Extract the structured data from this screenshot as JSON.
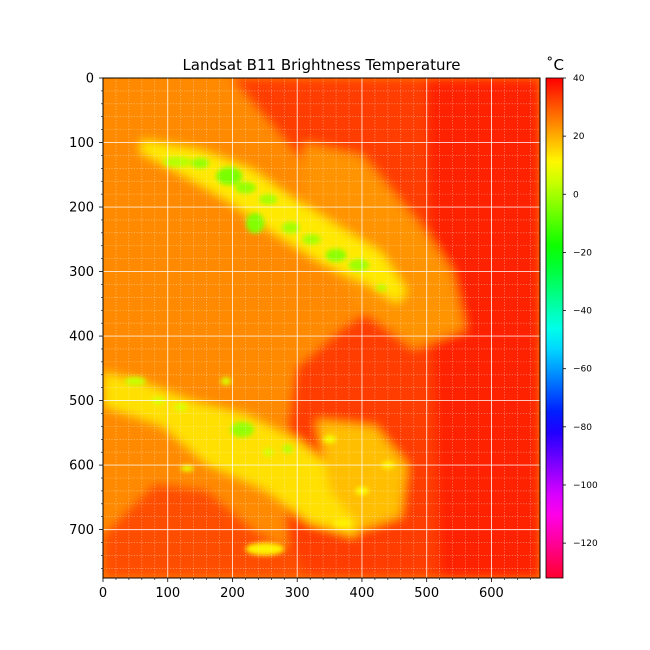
{
  "chart_data": {
    "type": "heatmap",
    "title": "Landsat B11 Brightness Temperature",
    "xlabel": "",
    "ylabel": "",
    "xlim": [
      0,
      675
    ],
    "ylim": [
      775,
      0
    ],
    "x_ticks": [
      0,
      100,
      200,
      300,
      400,
      500,
      600
    ],
    "y_ticks": [
      0,
      100,
      200,
      300,
      400,
      500,
      600,
      700
    ],
    "x_tick_labels": [
      "0",
      "100",
      "200",
      "300",
      "400",
      "500",
      "600"
    ],
    "y_tick_labels": [
      "0",
      "100",
      "200",
      "300",
      "400",
      "500",
      "600",
      "700"
    ],
    "grid": true,
    "colormap": "hsv",
    "colorbar": {
      "unit_label": "˚C",
      "vmin": -132,
      "vmax": 40,
      "ticks": [
        40,
        20,
        0,
        -20,
        -40,
        -60,
        -80,
        -100,
        -120
      ],
      "tick_labels": [
        "40",
        "20",
        "0",
        "−20",
        "−40",
        "−60",
        "−80",
        "−100",
        "−120"
      ]
    },
    "background_value": 24,
    "regions": [
      {
        "name": "upper-right-warm",
        "value": 33,
        "points": [
          [
            200,
            0
          ],
          [
            675,
            0
          ],
          [
            675,
            775
          ],
          [
            290,
            775
          ],
          [
            280,
            590
          ],
          [
            300,
            450
          ],
          [
            370,
            390
          ],
          [
            460,
            330
          ],
          [
            430,
            250
          ],
          [
            320,
            140
          ]
        ]
      },
      {
        "name": "east-strip",
        "value": 36,
        "points": [
          [
            500,
            0
          ],
          [
            675,
            0
          ],
          [
            675,
            775
          ],
          [
            520,
            775
          ],
          [
            510,
            420
          ]
        ]
      },
      {
        "name": "lower-left-warm",
        "value": 31,
        "points": [
          [
            0,
            710
          ],
          [
            80,
            630
          ],
          [
            160,
            640
          ],
          [
            230,
            700
          ],
          [
            300,
            740
          ],
          [
            320,
            775
          ],
          [
            0,
            775
          ]
        ]
      },
      {
        "name": "right-pink-lobe",
        "value": 23,
        "points": [
          [
            310,
            100
          ],
          [
            400,
            120
          ],
          [
            500,
            240
          ],
          [
            540,
            300
          ],
          [
            560,
            390
          ],
          [
            480,
            420
          ],
          [
            400,
            360
          ],
          [
            350,
            290
          ],
          [
            310,
            200
          ]
        ]
      },
      {
        "name": "upper-band",
        "value": 13,
        "points": [
          [
            60,
            95
          ],
          [
            150,
            110
          ],
          [
            230,
            140
          ],
          [
            300,
            190
          ],
          [
            380,
            240
          ],
          [
            430,
            270
          ],
          [
            470,
            330
          ],
          [
            455,
            350
          ],
          [
            410,
            320
          ],
          [
            340,
            290
          ],
          [
            260,
            240
          ],
          [
            190,
            190
          ],
          [
            120,
            150
          ],
          [
            55,
            115
          ]
        ]
      },
      {
        "name": "lower-band",
        "value": 14,
        "points": [
          [
            0,
            455
          ],
          [
            60,
            470
          ],
          [
            140,
            500
          ],
          [
            220,
            520
          ],
          [
            300,
            560
          ],
          [
            360,
            610
          ],
          [
            400,
            680
          ],
          [
            390,
            710
          ],
          [
            320,
            690
          ],
          [
            250,
            640
          ],
          [
            160,
            600
          ],
          [
            90,
            540
          ],
          [
            0,
            510
          ]
        ]
      },
      {
        "name": "lower-right-specks",
        "value": 18,
        "points": [
          [
            330,
            530
          ],
          [
            420,
            540
          ],
          [
            470,
            600
          ],
          [
            460,
            680
          ],
          [
            400,
            700
          ],
          [
            350,
            640
          ]
        ]
      }
    ],
    "blobs": [
      {
        "cx": 115,
        "cy": 130,
        "rx": 22,
        "ry": 8,
        "value": 2
      },
      {
        "cx": 150,
        "cy": 132,
        "rx": 14,
        "ry": 8,
        "value": -2
      },
      {
        "cx": 195,
        "cy": 152,
        "rx": 20,
        "ry": 14,
        "value": -5
      },
      {
        "cx": 220,
        "cy": 170,
        "rx": 16,
        "ry": 9,
        "value": -2
      },
      {
        "cx": 255,
        "cy": 188,
        "rx": 14,
        "ry": 8,
        "value": 0
      },
      {
        "cx": 235,
        "cy": 225,
        "rx": 14,
        "ry": 16,
        "value": -4
      },
      {
        "cx": 290,
        "cy": 232,
        "rx": 14,
        "ry": 9,
        "value": 0
      },
      {
        "cx": 322,
        "cy": 250,
        "rx": 14,
        "ry": 8,
        "value": 0
      },
      {
        "cx": 360,
        "cy": 275,
        "rx": 16,
        "ry": 10,
        "value": -3
      },
      {
        "cx": 395,
        "cy": 290,
        "rx": 16,
        "ry": 9,
        "value": -1
      },
      {
        "cx": 430,
        "cy": 325,
        "rx": 8,
        "ry": 5,
        "value": 2
      },
      {
        "cx": 50,
        "cy": 470,
        "rx": 16,
        "ry": 7,
        "value": 4
      },
      {
        "cx": 85,
        "cy": 500,
        "rx": 10,
        "ry": 6,
        "value": 6
      },
      {
        "cx": 120,
        "cy": 510,
        "rx": 10,
        "ry": 6,
        "value": 6
      },
      {
        "cx": 190,
        "cy": 470,
        "rx": 8,
        "ry": 6,
        "value": 6
      },
      {
        "cx": 215,
        "cy": 545,
        "rx": 18,
        "ry": 12,
        "value": -2
      },
      {
        "cx": 285,
        "cy": 575,
        "rx": 8,
        "ry": 7,
        "value": 2
      },
      {
        "cx": 255,
        "cy": 580,
        "rx": 8,
        "ry": 6,
        "value": 5
      },
      {
        "cx": 130,
        "cy": 605,
        "rx": 10,
        "ry": 5,
        "value": 8
      },
      {
        "cx": 350,
        "cy": 560,
        "rx": 10,
        "ry": 6,
        "value": 9
      },
      {
        "cx": 400,
        "cy": 640,
        "rx": 10,
        "ry": 6,
        "value": 10
      },
      {
        "cx": 370,
        "cy": 690,
        "rx": 14,
        "ry": 6,
        "value": 12
      },
      {
        "cx": 250,
        "cy": 730,
        "rx": 30,
        "ry": 10,
        "value": 12
      },
      {
        "cx": 440,
        "cy": 600,
        "rx": 10,
        "ry": 6,
        "value": 12
      }
    ]
  }
}
